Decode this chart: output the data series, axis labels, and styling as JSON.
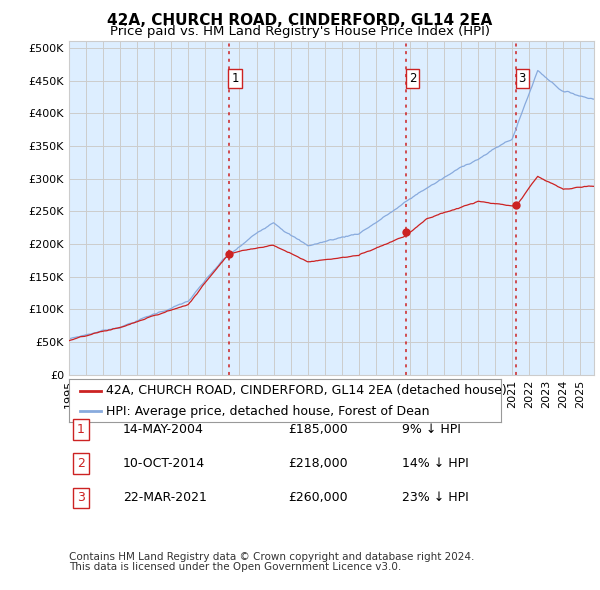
{
  "title": "42A, CHURCH ROAD, CINDERFORD, GL14 2EA",
  "subtitle": "Price paid vs. HM Land Registry's House Price Index (HPI)",
  "ytick_values": [
    0,
    50000,
    100000,
    150000,
    200000,
    250000,
    300000,
    350000,
    400000,
    450000,
    500000
  ],
  "ylim": [
    0,
    510000
  ],
  "xlim_start": 1995.0,
  "xlim_end": 2025.8,
  "xtick_years": [
    1995,
    1996,
    1997,
    1998,
    1999,
    2000,
    2001,
    2002,
    2003,
    2004,
    2005,
    2006,
    2007,
    2008,
    2009,
    2010,
    2011,
    2012,
    2013,
    2014,
    2015,
    2016,
    2017,
    2018,
    2019,
    2020,
    2021,
    2022,
    2023,
    2024,
    2025
  ],
  "hpi_color": "#88aadd",
  "price_color": "#cc2222",
  "vline_color": "#cc2222",
  "grid_color": "#cccccc",
  "chart_bg": "#ddeeff",
  "background_color": "#ffffff",
  "sale_points": [
    {
      "year": 2004.37,
      "price": 185000,
      "label": "1"
    },
    {
      "year": 2014.78,
      "price": 218000,
      "label": "2"
    },
    {
      "year": 2021.22,
      "price": 260000,
      "label": "3"
    }
  ],
  "legend_entries": [
    {
      "label": "42A, CHURCH ROAD, CINDERFORD, GL14 2EA (detached house)",
      "color": "#cc2222"
    },
    {
      "label": "HPI: Average price, detached house, Forest of Dean",
      "color": "#88aadd"
    }
  ],
  "table_rows": [
    {
      "num": "1",
      "date": "14-MAY-2004",
      "price": "£185,000",
      "pct": "9% ↓ HPI"
    },
    {
      "num": "2",
      "date": "10-OCT-2014",
      "price": "£218,000",
      "pct": "14% ↓ HPI"
    },
    {
      "num": "3",
      "date": "22-MAR-2021",
      "price": "£260,000",
      "pct": "23% ↓ HPI"
    }
  ],
  "footnote1": "Contains HM Land Registry data © Crown copyright and database right 2024.",
  "footnote2": "This data is licensed under the Open Government Licence v3.0.",
  "title_fontsize": 11,
  "subtitle_fontsize": 9.5,
  "tick_fontsize": 8,
  "legend_fontsize": 9,
  "table_fontsize": 9,
  "footnote_fontsize": 7.5
}
